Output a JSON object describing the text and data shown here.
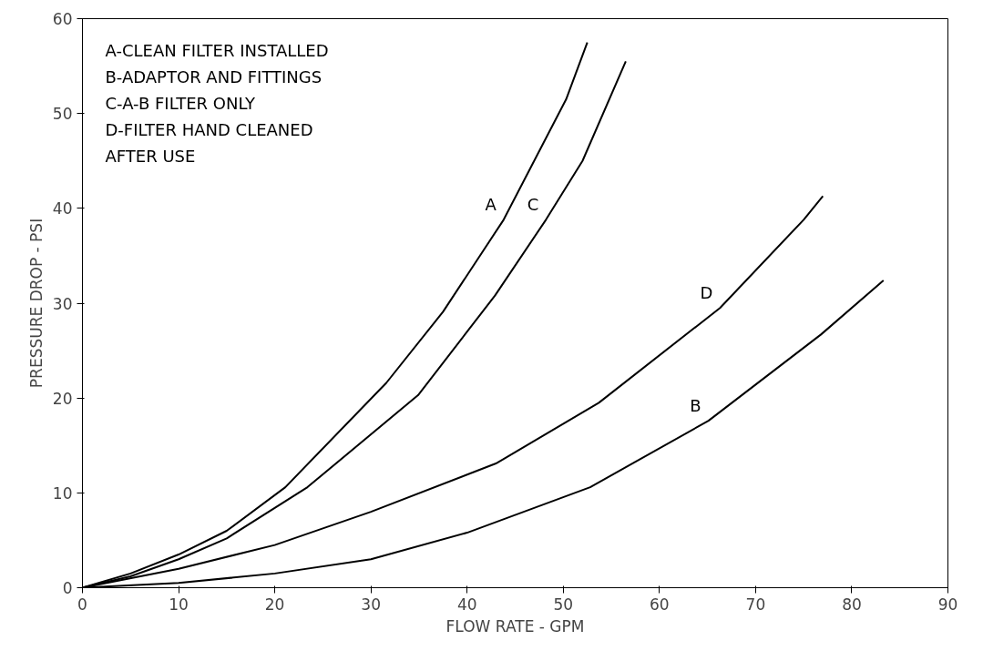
{
  "chart_data": {
    "type": "line",
    "xlabel": "FLOW RATE - GPM",
    "ylabel": "PRESSURE DROP - PSI",
    "xlim": [
      0,
      90
    ],
    "ylim": [
      0,
      60
    ],
    "xticks": [
      0,
      10,
      20,
      30,
      40,
      50,
      60,
      70,
      80,
      90
    ],
    "yticks": [
      0,
      10,
      20,
      30,
      40,
      50,
      60
    ],
    "grid": false,
    "line_style": "solid",
    "series": [
      {
        "name": "A",
        "color": "#000000",
        "x": [
          0,
          5,
          10,
          15,
          21.1,
          31.6,
          37.5,
          43.8,
          50.3,
          52.5
        ],
        "values": [
          0,
          1.5,
          3.5,
          6,
          10.6,
          21.6,
          29.1,
          38.8,
          51.5,
          57.5
        ]
      },
      {
        "name": "B",
        "color": "#000000",
        "x": [
          0,
          10,
          20,
          30,
          40,
          52.8,
          65.1,
          76.8,
          83.3
        ],
        "values": [
          0,
          0.5,
          1.5,
          3,
          5.8,
          10.6,
          17.6,
          26.7,
          32.4
        ]
      },
      {
        "name": "C",
        "color": "#000000",
        "x": [
          0,
          5,
          10,
          15,
          23.4,
          34.9,
          42.9,
          48.2,
          52,
          56.5
        ],
        "values": [
          0,
          1.2,
          3,
          5.2,
          10.6,
          20.3,
          30.8,
          38.8,
          45,
          55.5
        ]
      },
      {
        "name": "D",
        "color": "#000000",
        "x": [
          0,
          10,
          20,
          30,
          43,
          53.7,
          66.3,
          75,
          77
        ],
        "values": [
          0,
          2,
          4.5,
          8,
          13.1,
          19.5,
          29.5,
          38.8,
          41.3
        ]
      }
    ],
    "annotations": [
      "A-CLEAN FILTER INSTALLED",
      "B-ADAPTOR AND FITTINGS",
      "C-A-B FILTER ONLY",
      "D-FILTER HAND CLEANED",
      "   AFTER USE"
    ]
  }
}
